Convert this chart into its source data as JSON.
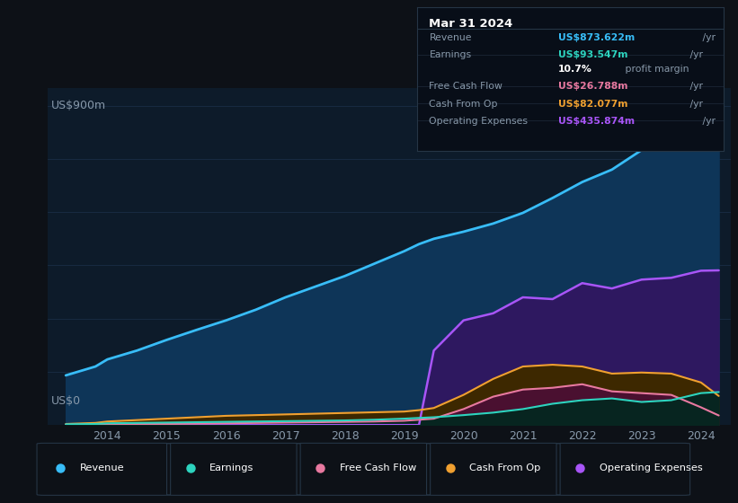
{
  "bg_color": "#0d1117",
  "chart_bg": "#0d1b2a",
  "ylabel": "US$900m",
  "y0label": "US$0",
  "years_x": [
    2013.3,
    2013.8,
    2014,
    2014.5,
    2015,
    2015.5,
    2016,
    2016.5,
    2017,
    2017.5,
    2018,
    2018.5,
    2019,
    2019.25,
    2019.5,
    2020,
    2020.5,
    2021,
    2021.5,
    2022,
    2022.5,
    2023,
    2023.5,
    2024,
    2024.3
  ],
  "revenue": [
    140,
    165,
    185,
    210,
    240,
    268,
    295,
    325,
    360,
    390,
    420,
    455,
    490,
    510,
    525,
    545,
    568,
    598,
    640,
    685,
    720,
    775,
    820,
    858,
    875
  ],
  "earnings": [
    2,
    3,
    5,
    6,
    7,
    8,
    9,
    10,
    11,
    12,
    13,
    15,
    18,
    20,
    22,
    28,
    35,
    45,
    60,
    70,
    75,
    65,
    70,
    90,
    93
  ],
  "free_cash_flow": [
    1,
    2,
    2,
    3,
    3,
    4,
    5,
    6,
    7,
    8,
    9,
    10,
    12,
    15,
    18,
    45,
    80,
    100,
    105,
    115,
    95,
    90,
    85,
    50,
    27
  ],
  "cash_from_op": [
    3,
    6,
    10,
    14,
    18,
    22,
    26,
    28,
    30,
    32,
    34,
    36,
    38,
    42,
    48,
    85,
    130,
    165,
    170,
    165,
    145,
    148,
    145,
    120,
    82
  ],
  "operating_exp": [
    0,
    0,
    0,
    0,
    0,
    0,
    0,
    0,
    0,
    0,
    0,
    0,
    0,
    0,
    210,
    295,
    315,
    360,
    355,
    400,
    385,
    410,
    415,
    435,
    436
  ],
  "revenue_color": "#38bdf8",
  "earnings_color": "#2dd4bf",
  "fcf_color": "#e879a0",
  "cashop_color": "#f0a030",
  "opexp_color": "#a855f7",
  "revenue_fill": "#0e3558",
  "opexp_fill": "#2e1860",
  "cashop_fill": "#3d2800",
  "fcf_fill": "#4a1030",
  "earnings_fill": "#072520",
  "legend_items": [
    "Revenue",
    "Earnings",
    "Free Cash Flow",
    "Cash From Op",
    "Operating Expenses"
  ],
  "legend_colors": [
    "#38bdf8",
    "#2dd4bf",
    "#e879a0",
    "#f0a030",
    "#a855f7"
  ],
  "info_box": {
    "date": "Mar 31 2024",
    "rows": [
      {
        "label": "Revenue",
        "value": "US$873.622m",
        "value_color": "#38bdf8",
        "suffix": " /yr"
      },
      {
        "label": "Earnings",
        "value": "US$93.547m",
        "value_color": "#2dd4bf",
        "suffix": " /yr"
      },
      {
        "label": "",
        "value": "10.7%",
        "value_color": "#ffffff",
        "suffix": " profit margin"
      },
      {
        "label": "Free Cash Flow",
        "value": "US$26.788m",
        "value_color": "#e879a0",
        "suffix": " /yr"
      },
      {
        "label": "Cash From Op",
        "value": "US$82.077m",
        "value_color": "#f0a030",
        "suffix": " /yr"
      },
      {
        "label": "Operating Expenses",
        "value": "US$435.874m",
        "value_color": "#a855f7",
        "suffix": " /yr"
      }
    ]
  },
  "xlim": [
    2013.0,
    2024.5
  ],
  "ylim": [
    0,
    950
  ],
  "grid_color": "#1a2d45",
  "tick_color": "#8899aa",
  "year_ticks": [
    2014,
    2015,
    2016,
    2017,
    2018,
    2019,
    2020,
    2021,
    2022,
    2023,
    2024
  ]
}
